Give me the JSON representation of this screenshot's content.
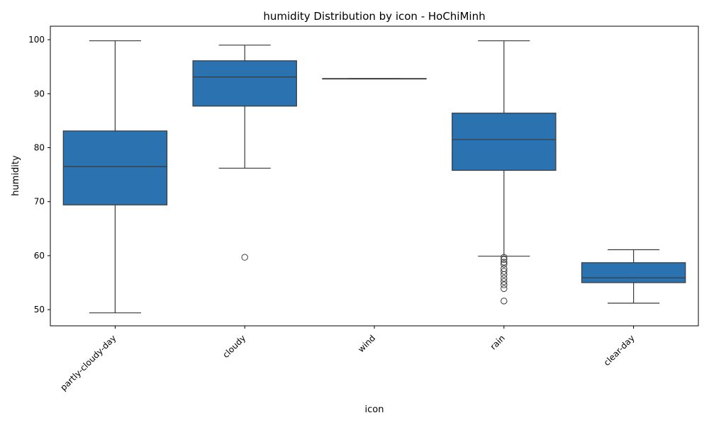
{
  "chart_data": {
    "type": "box",
    "title": "humidity Distribution by icon - HoChiMinh",
    "xlabel": "icon",
    "ylabel": "humidity",
    "ylim": [
      47,
      102.5
    ],
    "yticks": [
      50,
      60,
      70,
      80,
      90,
      100
    ],
    "grid": false,
    "legend": "none",
    "box_color": "#2a72b0",
    "line_color": "#3a3a3a",
    "categories": [
      "partly-cloudy-day",
      "cloudy",
      "wind",
      "rain",
      "clear-day"
    ],
    "boxes": [
      {
        "category": "partly-cloudy-day",
        "whisker_low": 49.4,
        "q1": 69.4,
        "median": 76.5,
        "q3": 83.1,
        "whisker_high": 99.8,
        "outliers": []
      },
      {
        "category": "cloudy",
        "whisker_low": 76.2,
        "q1": 87.7,
        "median": 93.1,
        "q3": 96.1,
        "whisker_high": 99.0,
        "outliers": [
          59.7
        ]
      },
      {
        "category": "wind",
        "whisker_low": 92.8,
        "q1": 92.8,
        "median": 92.8,
        "q3": 92.8,
        "whisker_high": 92.8,
        "outliers": []
      },
      {
        "category": "rain",
        "whisker_low": 59.9,
        "q1": 75.8,
        "median": 81.5,
        "q3": 86.4,
        "whisker_high": 99.8,
        "outliers": [
          59.7,
          59.3,
          58.8,
          58.4,
          57.6,
          57.1,
          56.5,
          55.8,
          55.2,
          54.6,
          53.9,
          51.6
        ]
      },
      {
        "category": "clear-day",
        "whisker_low": 51.2,
        "q1": 55.0,
        "median": 55.9,
        "q3": 58.7,
        "whisker_high": 61.1,
        "outliers": []
      }
    ]
  }
}
